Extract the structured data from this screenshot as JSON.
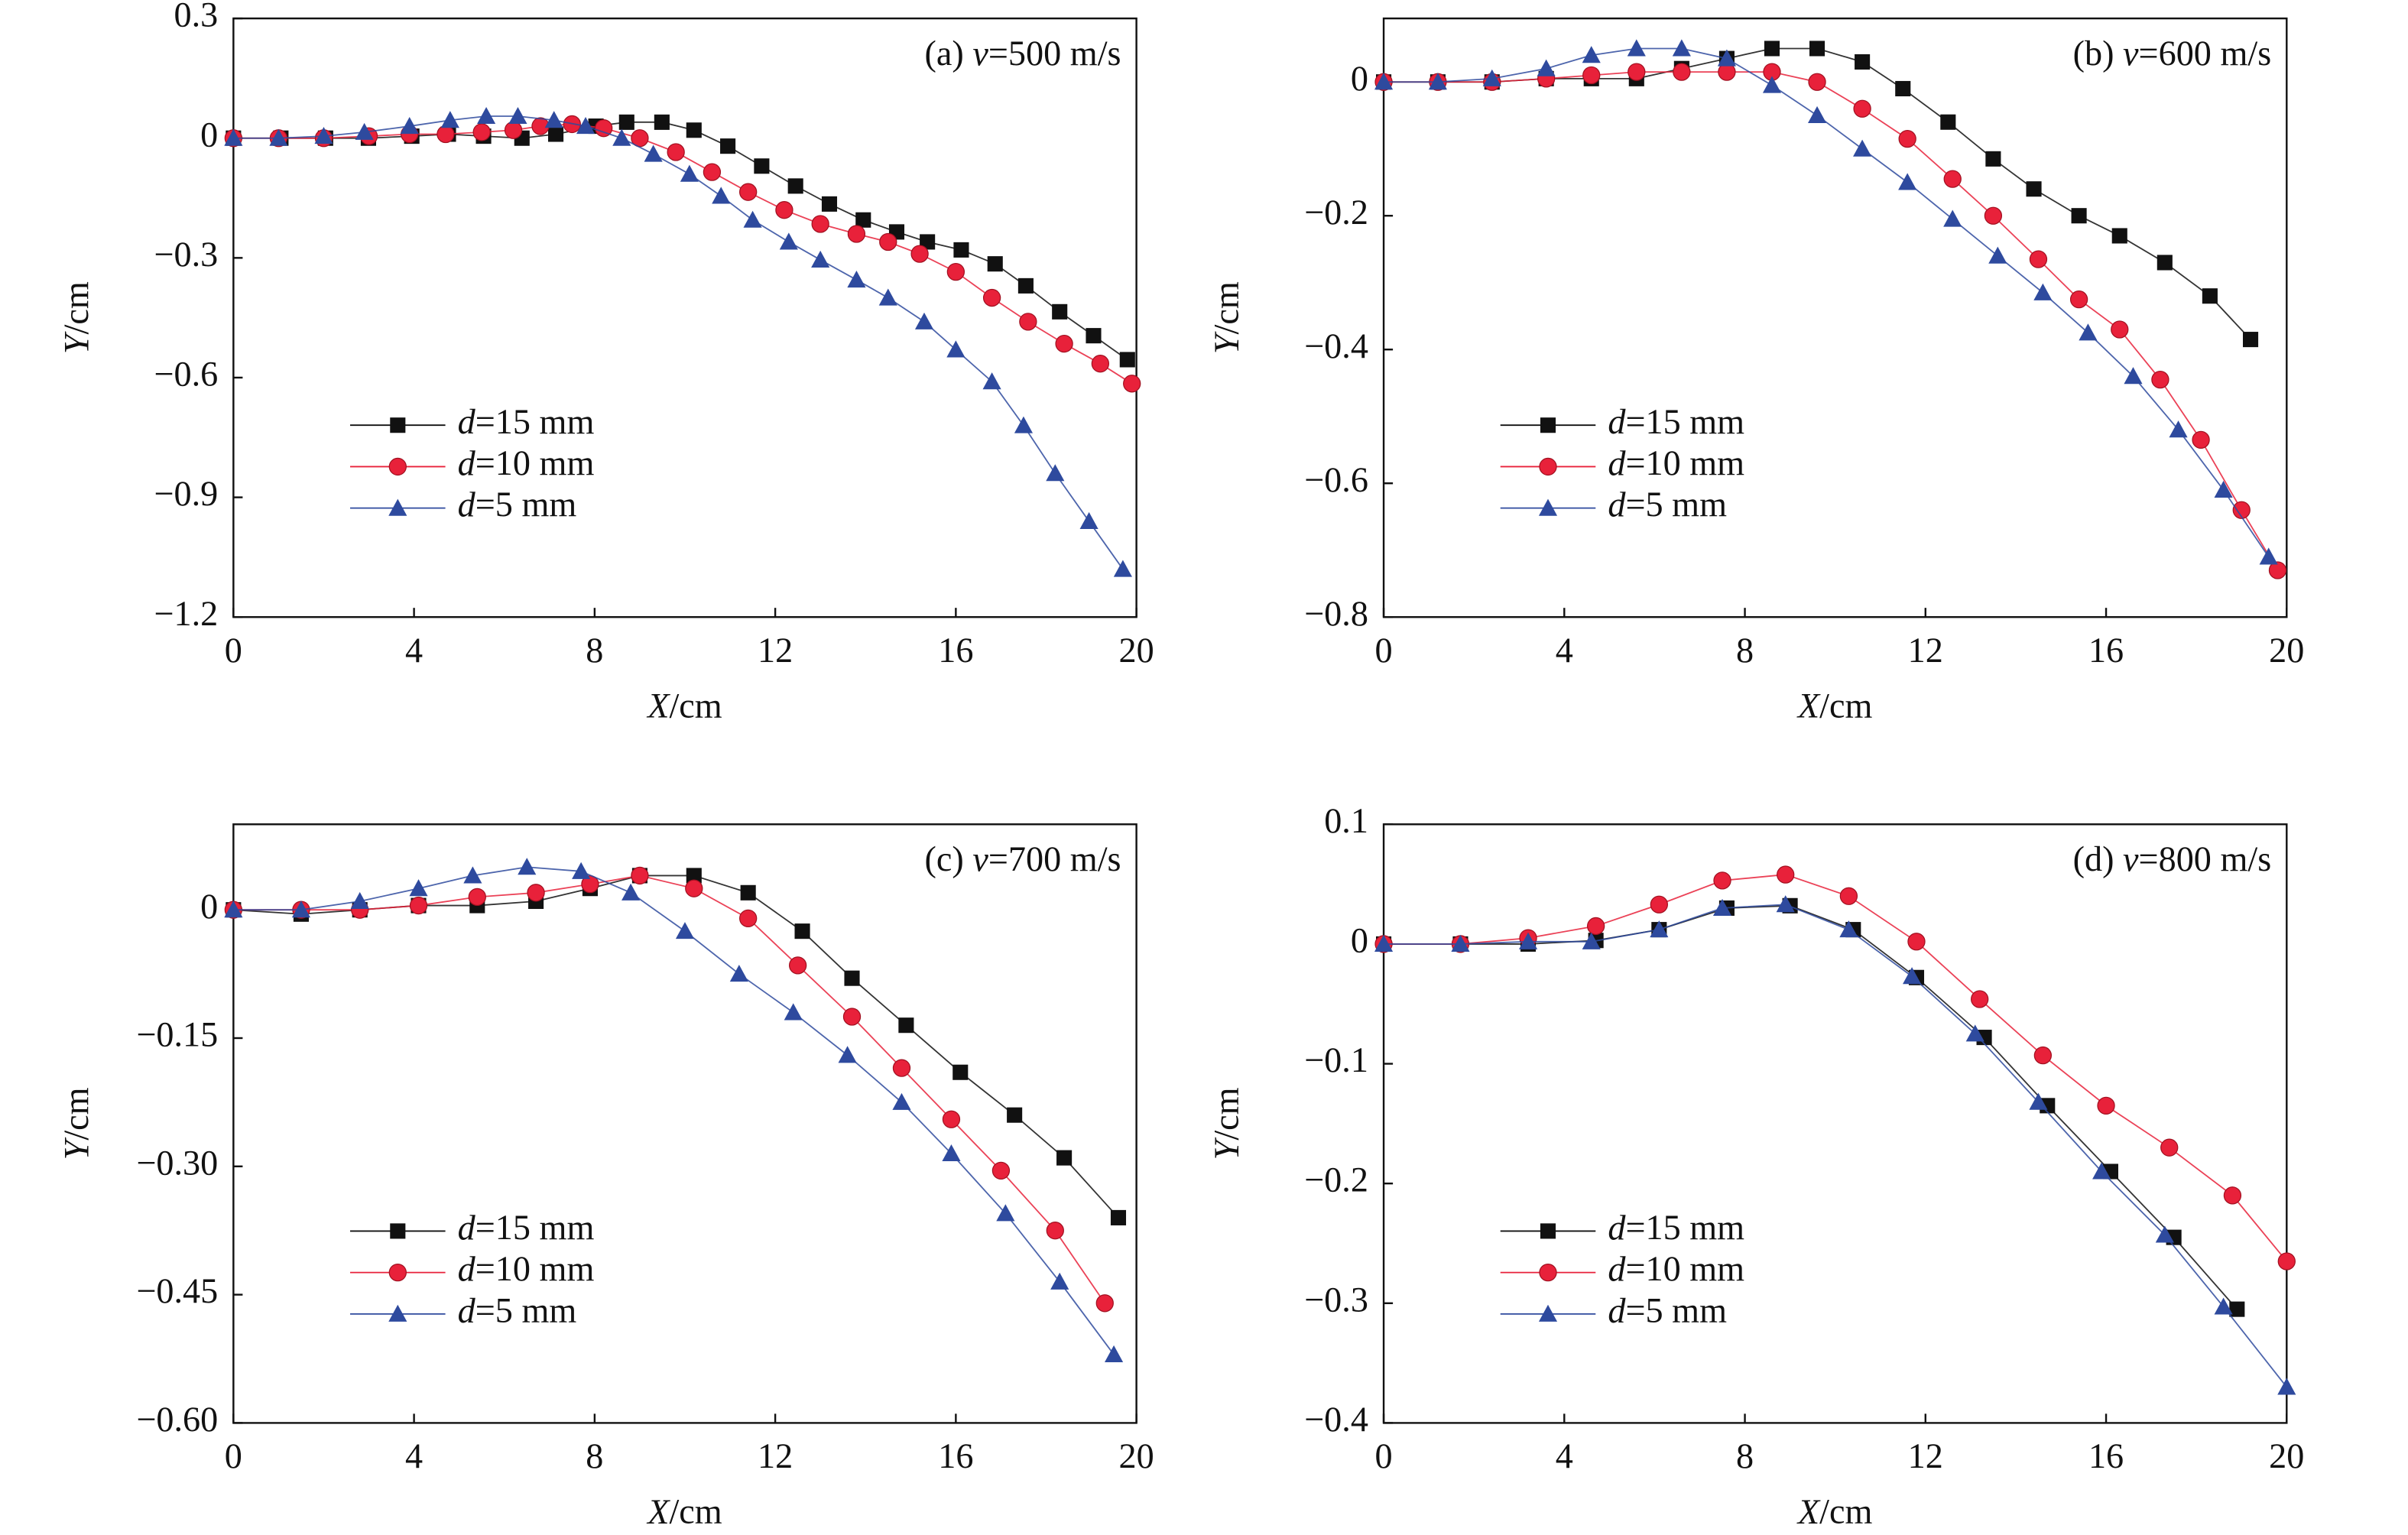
{
  "chart_data": [
    {
      "type": "line",
      "title": "(a) v=500 m/s",
      "x_label": "X/cm",
      "y_label": "Y/cm",
      "xlim": [
        0,
        20
      ],
      "xticks": [
        0,
        4,
        8,
        12,
        16,
        20
      ],
      "ylim": [
        -1.2,
        0.3
      ],
      "yticks": [
        0.3,
        0,
        {
          "value": -0.3,
          "label": "−0.3"
        },
        {
          "value": -0.6,
          "label": "−0.6"
        },
        {
          "value": -0.9,
          "label": "−0.9"
        },
        {
          "value": -1.2,
          "label": "−1.2"
        }
      ],
      "legend": "lower left",
      "series": [
        {
          "name": "d=15 mm",
          "color": "#111111",
          "marker": "square",
          "x": [
            0,
            1.05,
            2.04,
            2.99,
            3.95,
            4.76,
            5.54,
            6.39,
            7.14,
            8.03,
            8.71,
            9.49,
            10.2,
            10.95,
            11.7,
            12.45,
            13.2,
            13.95,
            14.69,
            15.37,
            16.12,
            16.87,
            17.55,
            18.3,
            19.05,
            19.8
          ],
          "values": [
            0,
            0,
            0,
            0,
            0.005,
            0.01,
            0.005,
            0,
            0.01,
            0.03,
            0.04,
            0.04,
            0.02,
            -0.02,
            -0.07,
            -0.12,
            -0.165,
            -0.205,
            -0.235,
            -0.26,
            -0.28,
            -0.315,
            -0.37,
            -0.435,
            -0.495,
            -0.555
          ]
        },
        {
          "name": "d=10 mm",
          "color": "#e8213a",
          "marker": "circle",
          "x": [
            0,
            1,
            2,
            3,
            3.9,
            4.7,
            5.5,
            6.2,
            6.8,
            7.5,
            8.2,
            9,
            9.8,
            10.6,
            11.4,
            12.2,
            13,
            13.8,
            14.5,
            15.2,
            16,
            16.8,
            17.6,
            18.4,
            19.2,
            19.9
          ],
          "values": [
            0,
            0,
            0,
            0.005,
            0.01,
            0.01,
            0.015,
            0.02,
            0.03,
            0.035,
            0.025,
            0,
            -0.035,
            -0.085,
            -0.135,
            -0.18,
            -0.215,
            -0.24,
            -0.26,
            -0.29,
            -0.335,
            -0.4,
            -0.46,
            -0.515,
            -0.565,
            -0.615
          ]
        },
        {
          "name": "d=5 mm",
          "color": "#2e4a9e",
          "marker": "triangle",
          "x": [
            0,
            1,
            2,
            2.9,
            3.9,
            4.8,
            5.6,
            6.3,
            7.1,
            7.8,
            8.6,
            9.3,
            10.1,
            10.8,
            11.5,
            12.3,
            13,
            13.8,
            14.5,
            15.3,
            16,
            16.8,
            17.5,
            18.2,
            18.95,
            19.7
          ],
          "values": [
            0,
            0,
            0.005,
            0.015,
            0.03,
            0.045,
            0.055,
            0.055,
            0.045,
            0.03,
            0,
            -0.04,
            -0.09,
            -0.145,
            -0.205,
            -0.26,
            -0.305,
            -0.355,
            -0.4,
            -0.46,
            -0.53,
            -0.61,
            -0.72,
            -0.84,
            -0.96,
            -1.08
          ]
        }
      ]
    },
    {
      "type": "line",
      "title": "(b) v=600 m/s",
      "x_label": "X/cm",
      "y_label": "Y/cm",
      "xlim": [
        0,
        20
      ],
      "xticks": [
        0,
        4,
        8,
        12,
        16,
        20
      ],
      "ylim": [
        -0.8,
        0.095
      ],
      "yticks": [
        0,
        {
          "value": -0.2,
          "label": "−0.2"
        },
        {
          "value": -0.4,
          "label": "−0.4"
        },
        {
          "value": -0.6,
          "label": "−0.6"
        },
        {
          "value": -0.8,
          "label": "−0.8"
        }
      ],
      "legend": "lower left",
      "series": [
        {
          "name": "d=15 mm",
          "color": "#111111",
          "marker": "square",
          "x": [
            0,
            1.2,
            2.4,
            3.6,
            4.6,
            5.6,
            6.6,
            7.6,
            8.6,
            9.6,
            10.6,
            11.5,
            12.5,
            13.5,
            14.4,
            15.4,
            16.3,
            17.3,
            18.3,
            19.2
          ],
          "values": [
            0,
            0,
            0,
            0.005,
            0.005,
            0.005,
            0.02,
            0.035,
            0.05,
            0.05,
            0.03,
            -0.01,
            -0.06,
            -0.115,
            -0.16,
            -0.2,
            -0.23,
            -0.27,
            -0.32,
            -0.385
          ]
        },
        {
          "name": "d=10 mm",
          "color": "#e8213a",
          "marker": "circle",
          "x": [
            0,
            1.2,
            2.4,
            3.6,
            4.6,
            5.6,
            6.6,
            7.6,
            8.6,
            9.6,
            10.6,
            11.6,
            12.6,
            13.5,
            14.5,
            15.4,
            16.3,
            17.2,
            18.1,
            19,
            19.8
          ],
          "values": [
            0,
            0,
            0,
            0.005,
            0.01,
            0.015,
            0.015,
            0.015,
            0.015,
            0,
            -0.04,
            -0.085,
            -0.145,
            -0.2,
            -0.265,
            -0.325,
            -0.37,
            -0.445,
            -0.535,
            -0.64,
            -0.73
          ]
        },
        {
          "name": "d=5 mm",
          "color": "#2e4a9e",
          "marker": "triangle",
          "x": [
            0,
            1.2,
            2.4,
            3.6,
            4.6,
            5.6,
            6.6,
            7.6,
            8.6,
            9.6,
            10.6,
            11.6,
            12.6,
            13.6,
            14.6,
            15.6,
            16.6,
            17.6,
            18.6,
            19.6
          ],
          "values": [
            0,
            0,
            0.005,
            0.02,
            0.04,
            0.05,
            0.05,
            0.035,
            -0.005,
            -0.05,
            -0.1,
            -0.15,
            -0.205,
            -0.26,
            -0.315,
            -0.375,
            -0.44,
            -0.52,
            -0.61,
            -0.71
          ]
        }
      ]
    },
    {
      "type": "line",
      "title": "(c) v=700 m/s",
      "x_label": "X/cm",
      "y_label": "Y/cm",
      "xlim": [
        0,
        20
      ],
      "xticks": [
        0,
        4,
        8,
        12,
        16,
        20
      ],
      "ylim": [
        -0.6,
        0.1
      ],
      "yticks": [
        0,
        {
          "value": -0.15,
          "label": "−0.15"
        },
        {
          "value": -0.3,
          "label": "−0.30"
        },
        {
          "value": -0.45,
          "label": "−0.45"
        },
        {
          "value": -0.6,
          "label": "−0.60"
        }
      ],
      "legend": "lower left",
      "series": [
        {
          "name": "d=15 mm",
          "color": "#111111",
          "marker": "square",
          "x": [
            0,
            1.5,
            2.8,
            4.1,
            5.4,
            6.7,
            7.9,
            9,
            10.2,
            11.4,
            12.6,
            13.7,
            14.9,
            16.1,
            17.3,
            18.4,
            19.6
          ],
          "values": [
            0,
            -0.005,
            0,
            0.005,
            0.005,
            0.01,
            0.025,
            0.04,
            0.04,
            0.02,
            -0.025,
            -0.08,
            -0.135,
            -0.19,
            -0.24,
            -0.29,
            -0.36
          ]
        },
        {
          "name": "d=10 mm",
          "color": "#e8213a",
          "marker": "circle",
          "x": [
            0,
            1.5,
            2.8,
            4.1,
            5.4,
            6.7,
            7.9,
            9,
            10.2,
            11.4,
            12.5,
            13.7,
            14.8,
            15.9,
            17,
            18.2,
            19.3
          ],
          "values": [
            0,
            0,
            0,
            0.005,
            0.015,
            0.02,
            0.03,
            0.04,
            0.025,
            -0.01,
            -0.065,
            -0.125,
            -0.185,
            -0.245,
            -0.305,
            -0.375,
            -0.46
          ]
        },
        {
          "name": "d=5 mm",
          "color": "#2e4a9e",
          "marker": "triangle",
          "x": [
            0,
            1.5,
            2.8,
            4.1,
            5.3,
            6.5,
            7.7,
            8.8,
            10,
            11.2,
            12.4,
            13.6,
            14.8,
            15.9,
            17.1,
            18.3,
            19.5
          ],
          "values": [
            0,
            0,
            0.01,
            0.025,
            0.04,
            0.05,
            0.045,
            0.02,
            -0.025,
            -0.075,
            -0.12,
            -0.17,
            -0.225,
            -0.285,
            -0.355,
            -0.435,
            -0.52
          ]
        }
      ]
    },
    {
      "type": "line",
      "title": "(d) v=800 m/s",
      "x_label": "X/cm",
      "y_label": "Y/cm",
      "xlim": [
        0,
        20
      ],
      "xticks": [
        0,
        4,
        8,
        12,
        16,
        20
      ],
      "ylim": [
        -0.4,
        0.1
      ],
      "yticks": [
        0.1,
        0,
        {
          "value": -0.1,
          "label": "−0.1"
        },
        {
          "value": -0.2,
          "label": "−0.2"
        },
        {
          "value": -0.3,
          "label": "−0.3"
        },
        {
          "value": -0.4,
          "label": "−0.4"
        }
      ],
      "legend": "lower left",
      "series": [
        {
          "name": "d=15 mm",
          "color": "#111111",
          "marker": "square",
          "x": [
            0,
            1.7,
            3.2,
            4.7,
            6.1,
            7.6,
            9,
            10.4,
            11.8,
            13.3,
            14.7,
            16.1,
            17.5,
            18.9
          ],
          "values": [
            0,
            0,
            0,
            0.003,
            0.012,
            0.03,
            0.032,
            0.012,
            -0.028,
            -0.078,
            -0.135,
            -0.19,
            -0.245,
            -0.305
          ]
        },
        {
          "name": "d=10 mm",
          "color": "#e8213a",
          "marker": "circle",
          "x": [
            0,
            1.7,
            3.2,
            4.7,
            6.1,
            7.5,
            8.9,
            10.3,
            11.8,
            13.2,
            14.6,
            16,
            17.4,
            18.8,
            20
          ],
          "values": [
            0,
            0,
            0.005,
            0.015,
            0.033,
            0.053,
            0.058,
            0.04,
            0.002,
            -0.046,
            -0.093,
            -0.135,
            -0.17,
            -0.21,
            -0.265
          ]
        },
        {
          "name": "d=5 mm",
          "color": "#2e4a9e",
          "marker": "triangle",
          "x": [
            0,
            1.7,
            3.2,
            4.6,
            6.1,
            7.5,
            8.9,
            10.3,
            11.7,
            13.1,
            14.5,
            15.9,
            17.3,
            18.6,
            20
          ],
          "values": [
            0,
            0,
            0.002,
            0.002,
            0.012,
            0.03,
            0.033,
            0.012,
            -0.027,
            -0.075,
            -0.132,
            -0.19,
            -0.243,
            -0.303,
            -0.37
          ]
        }
      ]
    }
  ]
}
